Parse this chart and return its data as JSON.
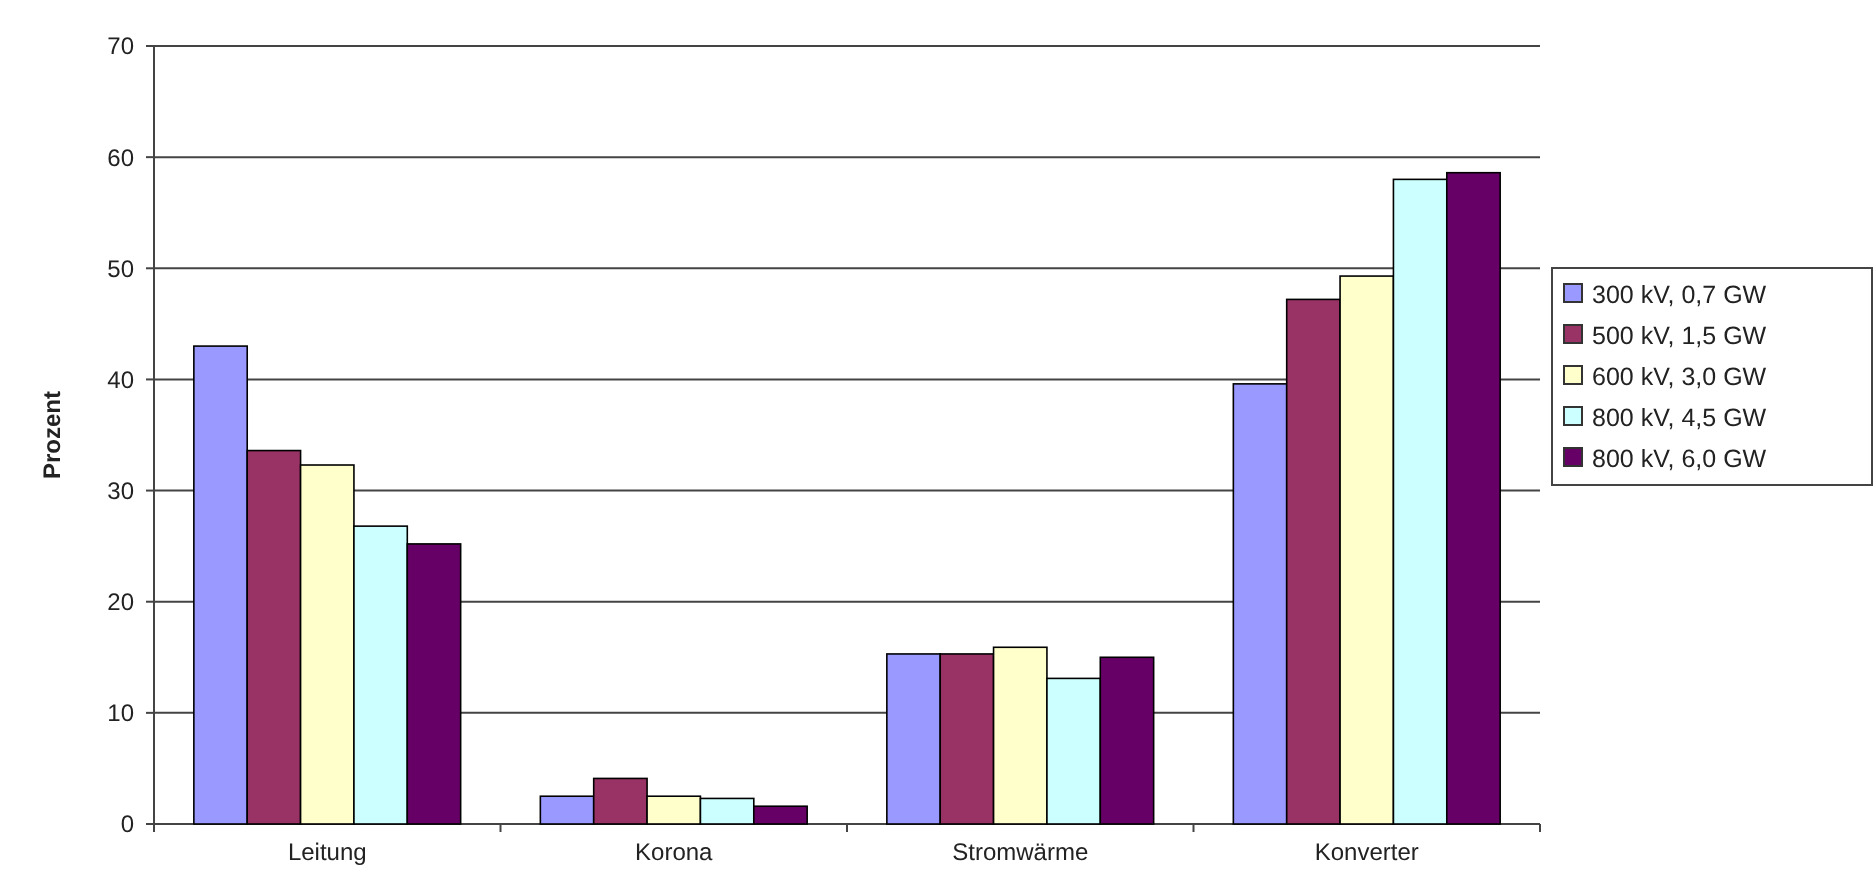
{
  "chart_data": {
    "type": "bar",
    "ylabel": "Prozent",
    "categories": [
      "Leitung",
      "Korona",
      "Stromwärme",
      "Konverter"
    ],
    "series": [
      {
        "name": "300 kV, 0,7 GW",
        "color": "#9999ff",
        "values": [
          43.0,
          2.5,
          15.3,
          39.6
        ]
      },
      {
        "name": "500 kV, 1,5 GW",
        "color": "#993366",
        "values": [
          33.6,
          4.1,
          15.3,
          47.2
        ]
      },
      {
        "name": "600 kV, 3,0 GW",
        "color": "#ffffcc",
        "values": [
          32.3,
          2.5,
          15.9,
          49.3
        ]
      },
      {
        "name": "800 kV, 4,5 GW",
        "color": "#ccffff",
        "values": [
          26.8,
          2.3,
          13.1,
          58.0
        ]
      },
      {
        "name": "800 kV, 6,0 GW",
        "color": "#660066",
        "values": [
          25.2,
          1.6,
          15.0,
          58.6
        ]
      }
    ],
    "ylim": [
      0,
      70
    ],
    "yticks": [
      0,
      10,
      20,
      30,
      40,
      50,
      60,
      70
    ],
    "grid": "y",
    "legend": "right"
  }
}
